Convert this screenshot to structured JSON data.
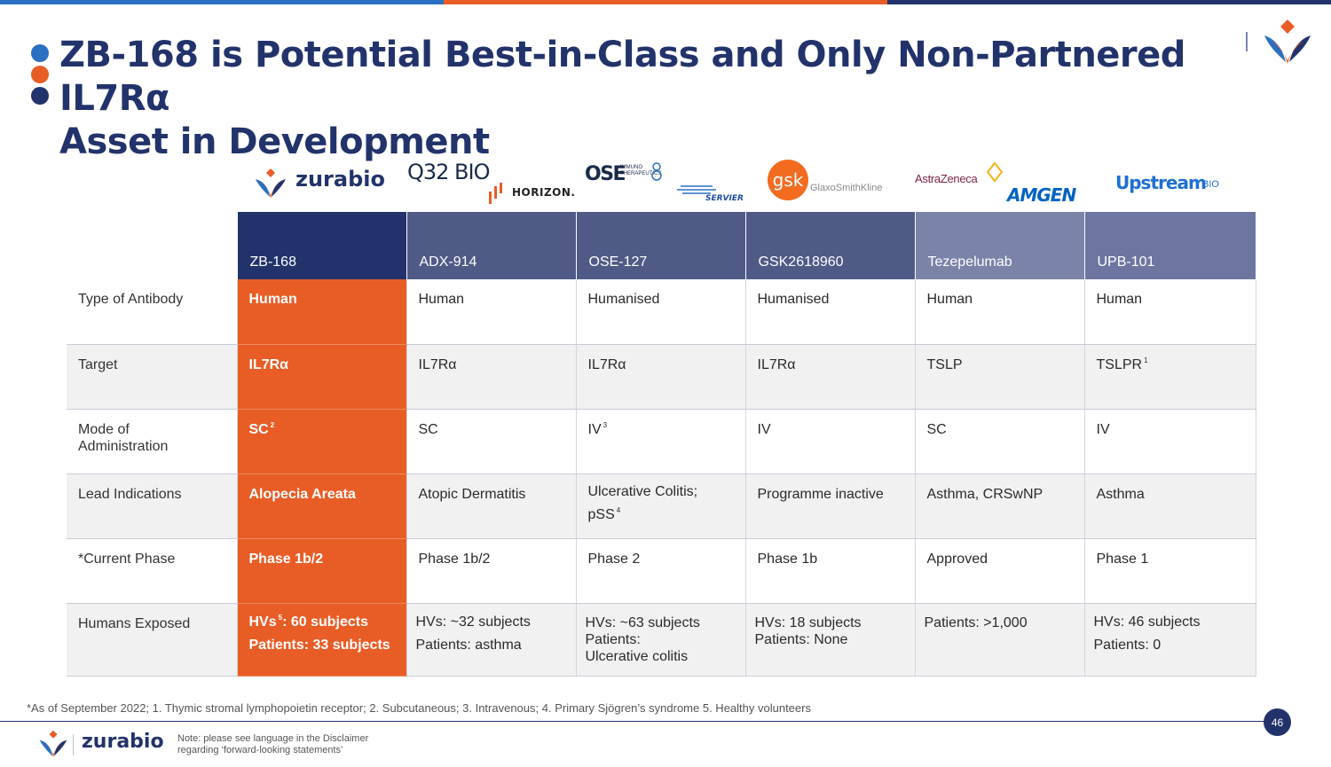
{
  "colors": {
    "navy": "#22336b",
    "orange": "#e85d26",
    "blue": "#2a6fc1",
    "header_zb": "#22336b",
    "header_mid": "#4f5a86",
    "header_teze": "#7a83a8",
    "header_upb": "#6d76a0"
  },
  "title": {
    "line1": "ZB-168 is Potential Best-in-Class and Only Non-Partnered IL7Rα",
    "line2": "Asset in Development"
  },
  "logos": {
    "zurabio": "zurabio",
    "q32": "Q32 BIO",
    "horizon": "HORIZON.",
    "ose": "OSE",
    "ose_sub": "IMMUNO THERAPEUTICS",
    "servier": "SERVIER",
    "gsk": "gsk",
    "gsk_sub": "GlaxoSmithKline",
    "astrazeneca": "AstraZeneca",
    "amgen": "AMGEN",
    "upstream": "Upstream",
    "upstream_bio": "BIO"
  },
  "table": {
    "headers": [
      "ZB-168",
      "ADX-914",
      "OSE-127",
      "GSK2618960",
      "Tezepelumab",
      "UPB-101"
    ],
    "rows": [
      {
        "label": "Type of Antibody",
        "cells": [
          "Human",
          "Human",
          "Humanised",
          "Humanised",
          "Human",
          "Human"
        ]
      },
      {
        "label": "Target",
        "cells": [
          "IL7Rα",
          "IL7Rα",
          "IL7Rα",
          "IL7Rα",
          "TSLP",
          "TSLPR"
        ],
        "sup": [
          "",
          "",
          "",
          "",
          "",
          "1"
        ]
      },
      {
        "label": "Mode of Administration",
        "cells": [
          "SC",
          "SC",
          "IV",
          "IV",
          "SC",
          "IV"
        ],
        "sup": [
          "2",
          "",
          "3",
          "",
          "",
          ""
        ]
      },
      {
        "label": "Lead Indications",
        "cells": [
          "Alopecia Areata",
          "Atopic Dermatitis",
          "Ulcerative Colitis;",
          "Programme inactive",
          "Asthma, CRSwNP",
          "Asthma"
        ],
        "line2": [
          "",
          "",
          "pSS",
          "",
          "",
          ""
        ],
        "sup2": [
          "",
          "",
          "4",
          "",
          "",
          ""
        ]
      },
      {
        "label": "*Current Phase",
        "cells": [
          "Phase 1b/2",
          "Phase 1b/2",
          "Phase 2",
          "Phase 1b",
          "Approved",
          "Phase 1"
        ]
      },
      {
        "label": "Humans Exposed",
        "cells": [
          "HVs",
          "HVs: ~32 subjects",
          "HVs: ~63 subjects",
          "HVs: 18 subjects",
          "Patients: >1,000",
          "HVs: 46 subjects"
        ],
        "zb_sup": "5",
        "zb_rest": ": 60 subjects",
        "line2": [
          "Patients: 33 subjects",
          "Patients: asthma",
          "Patients:",
          "Patients: None",
          "",
          "Patients: 0"
        ],
        "line3": [
          "",
          "",
          "Ulcerative colitis",
          "",
          "",
          ""
        ]
      }
    ]
  },
  "footnote": "*As of September 2022; 1. Thymic stromal lymphopoietin receptor; 2. Subcutaneous; 3. Intravenous; 4. Primary Sjögren’s syndrome 5. Healthy volunteers",
  "page_number": "46",
  "footer": {
    "brand": "zurabio",
    "disclaimer_line1": "Note: please see language in the Disclaimer",
    "disclaimer_line2": "regarding ‘forward-looking statements’"
  }
}
